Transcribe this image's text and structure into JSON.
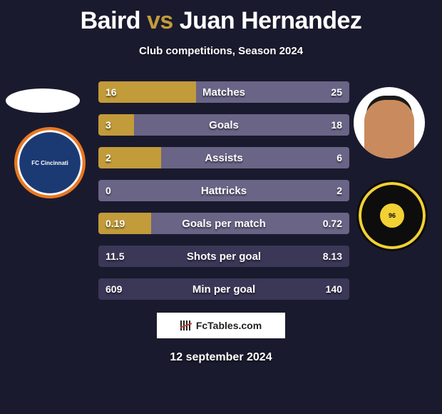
{
  "title": {
    "player1": "Baird",
    "vs": "vs",
    "player2": "Juan Hernandez",
    "accent_color": "#c29b3a",
    "main_color": "#ffffff",
    "fontsize": 34
  },
  "subtitle": "Club competitions, Season 2024",
  "background_color": "#1a1a2e",
  "player1": {
    "photo_shape": "ellipse",
    "logo_name": "FC Cincinnati",
    "logo_colors": {
      "outer": "#e87722",
      "ring": "#ffffff",
      "inner": "#1b3a73"
    }
  },
  "player2": {
    "photo_shape": "circle",
    "skin_color": "#c98b5d",
    "hair_color": "#1a1a1a",
    "logo_name": "Columbus Crew SC",
    "logo_colors": {
      "bg": "#0d0d0d",
      "accent": "#f3d034"
    },
    "logo_badge": "96"
  },
  "bars": {
    "track_color": "#3b3757",
    "left_fill_color": "#c29b3a",
    "right_fill_color": "#6a6486",
    "text_color": "#ffffff",
    "label_fontsize": 15,
    "value_fontsize": 14,
    "rows": [
      {
        "label": "Matches",
        "left": "16",
        "right": "25",
        "left_pct": 39.0,
        "right_pct": 61.0
      },
      {
        "label": "Goals",
        "left": "3",
        "right": "18",
        "left_pct": 14.3,
        "right_pct": 85.7
      },
      {
        "label": "Assists",
        "left": "2",
        "right": "6",
        "left_pct": 25.0,
        "right_pct": 75.0
      },
      {
        "label": "Hattricks",
        "left": "0",
        "right": "2",
        "left_pct": 0.0,
        "right_pct": 100.0
      },
      {
        "label": "Goals per match",
        "left": "0.19",
        "right": "0.72",
        "left_pct": 20.9,
        "right_pct": 79.1
      },
      {
        "label": "Shots per goal",
        "left": "11.5",
        "right": "8.13",
        "left_pct": 0.0,
        "right_pct": 0.0
      },
      {
        "label": "Min per goal",
        "left": "609",
        "right": "140",
        "left_pct": 0.0,
        "right_pct": 0.0
      }
    ]
  },
  "footer": {
    "brand": "FcTables.com",
    "date": "12 september 2024"
  }
}
